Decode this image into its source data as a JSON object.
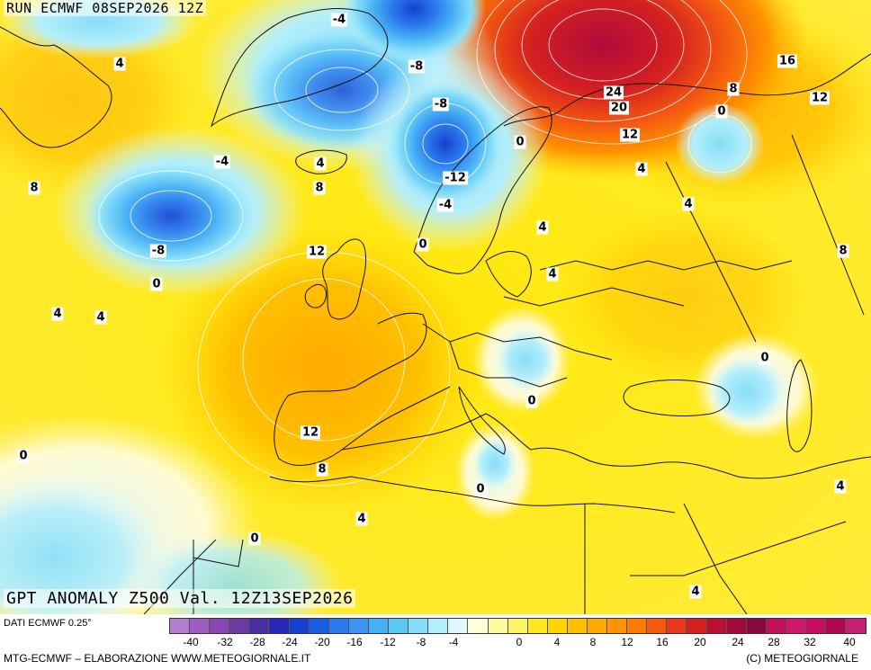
{
  "run_label": "RUN ECMWF 08SEP2026 12Z",
  "map_title": "GPT ANOMALY Z500 Val. 12Z13SEP2026",
  "contour_labels": [
    {
      "text": "-4"
    },
    {
      "text": "4"
    },
    {
      "text": "-8"
    },
    {
      "text": "16"
    },
    {
      "text": "8"
    },
    {
      "text": "12"
    },
    {
      "text": "-8"
    },
    {
      "text": "24"
    },
    {
      "text": "20"
    },
    {
      "text": "0"
    },
    {
      "text": "0"
    },
    {
      "text": "12"
    },
    {
      "text": "-4"
    },
    {
      "text": "4"
    },
    {
      "text": "4"
    },
    {
      "text": "8"
    },
    {
      "text": "8"
    },
    {
      "text": "-12"
    },
    {
      "text": "-4"
    },
    {
      "text": "4"
    },
    {
      "text": "-8"
    },
    {
      "text": "0"
    },
    {
      "text": "12"
    },
    {
      "text": "4"
    },
    {
      "text": "0"
    },
    {
      "text": "4"
    },
    {
      "text": "4"
    },
    {
      "text": "4"
    },
    {
      "text": "8"
    },
    {
      "text": "0"
    },
    {
      "text": "0"
    },
    {
      "text": "12"
    },
    {
      "text": "0"
    },
    {
      "text": "8"
    },
    {
      "text": "0"
    },
    {
      "text": "4"
    },
    {
      "text": "4"
    },
    {
      "text": "0"
    },
    {
      "text": "4"
    }
  ],
  "legend": {
    "source": "DATI ECMWF 0.25°",
    "colors": [
      "#b27fd0",
      "#9c5fc0",
      "#8648b0",
      "#6a3ca0",
      "#4a2fa0",
      "#2828b8",
      "#1640d0",
      "#1a5ce0",
      "#2a78ec",
      "#3c94f4",
      "#46b0f6",
      "#5ccaf6",
      "#86def8",
      "#b4eefa",
      "#e0f8fc",
      "#ffffd8",
      "#fffaa0",
      "#fff466",
      "#ffe81e",
      "#ffd400",
      "#ffc000",
      "#ffaa00",
      "#ff9400",
      "#ff7a00",
      "#f45a10",
      "#e8381c",
      "#d42020",
      "#b81030",
      "#a00a3a",
      "#8a0840",
      "#c0105a",
      "#d0186a",
      "#c80c60",
      "#b00850",
      "#c22070"
    ],
    "ticks": [
      "-40",
      "-32",
      "-28",
      "-24",
      "-20",
      "-16",
      "-12",
      "-8",
      "-4",
      "0",
      "4",
      "8",
      "12",
      "16",
      "20",
      "24",
      "28",
      "32",
      "40"
    ],
    "credit_left": "MTG-ECMWF – ELABORAZIONE WWW.METEOGIORNALE.IT",
    "credit_right": "(C) METEOGIORNALE"
  }
}
